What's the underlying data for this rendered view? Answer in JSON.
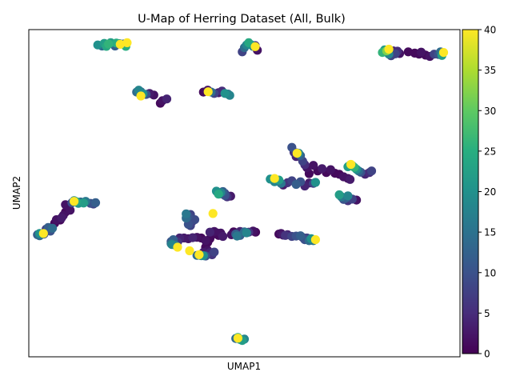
{
  "chart_data": {
    "type": "scatter",
    "title": "U-Map of Herring Dataset (All, Bulk)",
    "xlabel": "UMAP1",
    "ylabel": "UMAP2",
    "xlim": [
      0,
      100
    ],
    "ylim": [
      0,
      100
    ],
    "xticks_shown": false,
    "yticks_shown": false,
    "colorbar": {
      "label": "",
      "colormap": "viridis",
      "range": [
        0,
        40
      ],
      "ticks": [
        0,
        5,
        10,
        15,
        20,
        25,
        30,
        35,
        40
      ]
    },
    "point_style": {
      "marker": "circle",
      "size": "large"
    },
    "clusters": [
      {
        "id": "c1",
        "points": [
          [
            16,
            95.3,
            20
          ],
          [
            17,
            95,
            14
          ],
          [
            17.5,
            95.8,
            22
          ],
          [
            18,
            94.9,
            24
          ],
          [
            18.5,
            95.6,
            26
          ],
          [
            19,
            96,
            22
          ],
          [
            20,
            95,
            12
          ],
          [
            21,
            95.7,
            16
          ],
          [
            22,
            95.6,
            13
          ],
          [
            22.5,
            94.9,
            25
          ],
          [
            20.3,
            95.9,
            25
          ],
          [
            21.2,
            95.5,
            40
          ],
          [
            22.8,
            96,
            40
          ]
        ]
      },
      {
        "id": "c2",
        "points": [
          [
            49.5,
            93.2,
            8
          ],
          [
            50,
            94.5,
            14
          ],
          [
            50.5,
            95.3,
            18
          ],
          [
            51,
            96,
            24
          ],
          [
            51.5,
            95.4,
            20
          ],
          [
            52,
            94.9,
            16
          ],
          [
            52.5,
            95.1,
            6
          ],
          [
            53,
            93.7,
            2
          ],
          [
            52.5,
            94.8,
            40
          ]
        ]
      },
      {
        "id": "c3",
        "points": [
          [
            82,
            93,
            26
          ],
          [
            82.5,
            93.8,
            22
          ],
          [
            83,
            93.5,
            32
          ],
          [
            83.5,
            92.5,
            18
          ],
          [
            84,
            92,
            8
          ],
          [
            84.5,
            93.5,
            4
          ],
          [
            85,
            92.6,
            8
          ],
          [
            85.5,
            93.4,
            5
          ],
          [
            86,
            92.7,
            2
          ],
          [
            88,
            93.2,
            1
          ],
          [
            89.5,
            92.8,
            1
          ],
          [
            90.5,
            92.5,
            1
          ],
          [
            91,
            93.1,
            2
          ],
          [
            92,
            92.2,
            1
          ],
          [
            93,
            91.8,
            2
          ],
          [
            94,
            92.5,
            8
          ],
          [
            95,
            92.4,
            10
          ],
          [
            95.5,
            93.2,
            14
          ],
          [
            96,
            92.8,
            18
          ],
          [
            95.8,
            92.1,
            22
          ],
          [
            83.5,
            94,
            40
          ],
          [
            96.2,
            93,
            40
          ]
        ]
      },
      {
        "id": "c4",
        "points": [
          [
            25,
            80.9,
            14
          ],
          [
            25.5,
            81.5,
            18
          ],
          [
            26,
            81,
            12
          ],
          [
            26.5,
            80.4,
            20
          ],
          [
            27.2,
            80.2,
            10
          ],
          [
            28,
            80.5,
            3
          ],
          [
            29,
            80,
            2
          ],
          [
            30.5,
            77.5,
            1
          ],
          [
            31,
            78.3,
            2
          ],
          [
            32,
            78.8,
            4
          ],
          [
            26,
            79.7,
            40
          ]
        ]
      },
      {
        "id": "c5",
        "points": [
          [
            40.5,
            80.9,
            1
          ],
          [
            41.5,
            81.5,
            2
          ],
          [
            42.3,
            80.9,
            14
          ],
          [
            43,
            80.5,
            8
          ],
          [
            44,
            80.7,
            3
          ],
          [
            44.8,
            81.2,
            5
          ],
          [
            45.5,
            80.5,
            20
          ],
          [
            46.2,
            80.3,
            15
          ],
          [
            46.6,
            79.9,
            18
          ],
          [
            41.6,
            81,
            40
          ]
        ]
      },
      {
        "id": "c6",
        "points": [
          [
            61,
            64,
            10
          ],
          [
            61.5,
            62.5,
            6
          ],
          [
            62,
            61.2,
            4
          ],
          [
            62.2,
            62.3,
            10
          ],
          [
            62.6,
            62.2,
            18
          ],
          [
            63,
            61.5,
            12
          ],
          [
            63.5,
            59.8,
            8
          ],
          [
            64,
            58.7,
            5
          ],
          [
            64.5,
            57.8,
            2
          ],
          [
            65,
            56,
            1
          ],
          [
            66,
            58.5,
            2
          ],
          [
            67,
            56.8,
            1
          ],
          [
            68,
            57.5,
            3
          ],
          [
            69,
            56.3,
            1
          ],
          [
            70,
            57.2,
            2
          ],
          [
            71,
            56.1,
            1
          ],
          [
            72,
            55.8,
            1
          ],
          [
            73,
            55,
            2
          ],
          [
            74,
            54.5,
            1
          ],
          [
            74.5,
            54.2,
            3
          ],
          [
            62.2,
            62.2,
            40
          ]
        ]
      },
      {
        "id": "c7",
        "points": [
          [
            56,
            54.3,
            20
          ],
          [
            57,
            53.5,
            18
          ],
          [
            58,
            54,
            22
          ],
          [
            58.5,
            53,
            16
          ],
          [
            59,
            52.5,
            3
          ],
          [
            60,
            53.2,
            6
          ],
          [
            61,
            53.8,
            8
          ],
          [
            62,
            52.7,
            12
          ],
          [
            63,
            53.5,
            10
          ],
          [
            64,
            52.2,
            4
          ],
          [
            65,
            53.1,
            3
          ],
          [
            66,
            53,
            8
          ],
          [
            66.5,
            53.3,
            20
          ],
          [
            57,
            54.5,
            40
          ]
        ]
      },
      {
        "id": "c8",
        "points": [
          [
            74,
            58.1,
            22
          ],
          [
            74.5,
            58.6,
            24
          ],
          [
            75,
            58.4,
            18
          ],
          [
            75.5,
            57.9,
            26
          ],
          [
            76,
            57.3,
            20
          ],
          [
            76.5,
            56.8,
            14
          ],
          [
            77,
            56.4,
            10
          ],
          [
            78,
            55.8,
            4
          ],
          [
            79,
            56.3,
            5
          ],
          [
            79.5,
            56.8,
            8
          ],
          [
            74.7,
            58.8,
            40
          ]
        ]
      },
      {
        "id": "c9",
        "points": [
          [
            72,
            49.5,
            22
          ],
          [
            72.5,
            48.9,
            16
          ],
          [
            73,
            48.1,
            10
          ],
          [
            74,
            47.7,
            6
          ],
          [
            75,
            48.2,
            8
          ],
          [
            76,
            47.9,
            2
          ],
          [
            73.5,
            48.5,
            12
          ],
          [
            74,
            49.2,
            18
          ]
        ]
      },
      {
        "id": "c10",
        "points": [
          [
            43.5,
            50.6,
            20
          ],
          [
            44,
            49.7,
            24
          ],
          [
            44.5,
            50.2,
            18
          ],
          [
            45,
            50.5,
            12
          ],
          [
            45.5,
            49.3,
            10
          ],
          [
            46,
            48.9,
            6
          ],
          [
            46.8,
            49.1,
            3
          ],
          [
            43.8,
            50.2,
            4
          ],
          [
            45.5,
            49.9,
            8
          ],
          [
            44.5,
            49.8,
            4
          ]
        ]
      },
      {
        "id": "c11",
        "points": [
          [
            10,
            47.1,
            10
          ],
          [
            10.5,
            47.7,
            18
          ],
          [
            11,
            47.4,
            24
          ],
          [
            11.5,
            46.9,
            20
          ],
          [
            12,
            47.3,
            14
          ],
          [
            12.7,
            47,
            22
          ],
          [
            13.2,
            47.5,
            16
          ],
          [
            14.3,
            46.9,
            10
          ],
          [
            15,
            46.7,
            8
          ],
          [
            15.5,
            47.1,
            12
          ],
          [
            8.5,
            46.5,
            2
          ],
          [
            9,
            45.5,
            1
          ],
          [
            9.6,
            44.8,
            2
          ],
          [
            8.5,
            44.2,
            1
          ],
          [
            8,
            43.2,
            2
          ],
          [
            7.6,
            42.5,
            3
          ],
          [
            7.3,
            41.8,
            1
          ],
          [
            6.4,
            41.9,
            2
          ],
          [
            6,
            40.8,
            1
          ],
          [
            4,
            39,
            8
          ],
          [
            4.5,
            39.5,
            12
          ],
          [
            5.5,
            39.3,
            14
          ],
          [
            3.5,
            37.5,
            10
          ],
          [
            5,
            38.4,
            10
          ],
          [
            3,
            37.6,
            18
          ],
          [
            2,
            37.3,
            12
          ],
          [
            2.5,
            37.7,
            20
          ],
          [
            2.5,
            37,
            14
          ],
          [
            10.5,
            47.5,
            40
          ],
          [
            3.4,
            37.7,
            40
          ]
        ]
      },
      {
        "id": "c12",
        "points": [
          [
            36.5,
            43.7,
            16
          ],
          [
            37,
            42.8,
            10
          ],
          [
            37.5,
            43.5,
            8
          ],
          [
            38,
            41.5,
            6
          ],
          [
            38.5,
            41.9,
            9
          ],
          [
            36.5,
            42.4,
            14
          ],
          [
            37,
            40.5,
            10
          ],
          [
            37.5,
            40.1,
            8
          ]
        ]
      },
      {
        "id": "c13",
        "points": [
          [
            33.5,
            35.8,
            12
          ],
          [
            33,
            35.2,
            10
          ],
          [
            33,
            34.6,
            14
          ],
          [
            33.2,
            34.3,
            18
          ],
          [
            34,
            34.1,
            16
          ],
          [
            34.5,
            35.1,
            6
          ],
          [
            35,
            36,
            4
          ],
          [
            36,
            36.3,
            3
          ],
          [
            37,
            36.1,
            2
          ],
          [
            38,
            36.4,
            4
          ],
          [
            39,
            36.5,
            2
          ],
          [
            40,
            36.3,
            1
          ],
          [
            35,
            36.3,
            4
          ]
        ]
      },
      {
        "id": "c14",
        "points": [
          [
            41,
            35.5,
            2
          ],
          [
            41.5,
            35,
            1
          ],
          [
            42,
            36.1,
            1
          ],
          [
            42.5,
            37.3,
            1
          ],
          [
            42,
            38.1,
            4
          ],
          [
            43,
            38.3,
            2
          ],
          [
            43.5,
            37.9,
            1
          ],
          [
            44,
            37.1,
            1
          ],
          [
            45,
            36.8,
            3
          ],
          [
            44.5,
            37.8,
            2
          ]
        ]
      },
      {
        "id": "c15",
        "points": [
          [
            41,
            33.5,
            1
          ],
          [
            41.5,
            32.5,
            2
          ],
          [
            42,
            31.8,
            4
          ],
          [
            42.5,
            31.2,
            6
          ],
          [
            43,
            32,
            8
          ],
          [
            40.5,
            31.9,
            3
          ],
          [
            39,
            31,
            14
          ],
          [
            40,
            30.9,
            18
          ],
          [
            41,
            30.8,
            10
          ],
          [
            40.5,
            30.9,
            20
          ]
        ]
      },
      {
        "id": "c16",
        "points": [
          [
            47,
            37.3,
            2
          ],
          [
            47.5,
            38.2,
            1
          ],
          [
            48,
            37.5,
            12
          ],
          [
            48.5,
            37.9,
            2
          ],
          [
            49,
            38.3,
            4
          ],
          [
            50,
            38.2,
            14
          ],
          [
            50.5,
            37.9,
            18
          ],
          [
            51,
            38.1,
            6
          ],
          [
            52,
            38.4,
            2
          ],
          [
            52.6,
            38.1,
            1
          ],
          [
            49,
            37.1,
            12
          ],
          [
            48.3,
            36.9,
            16
          ]
        ]
      },
      {
        "id": "c17",
        "points": [
          [
            58,
            37.5,
            1
          ],
          [
            58.5,
            37.7,
            2
          ],
          [
            59,
            37.2,
            3
          ],
          [
            59.5,
            37.1,
            6
          ],
          [
            60,
            37.3,
            4
          ],
          [
            61,
            36.8,
            8
          ],
          [
            62,
            36.9,
            10
          ],
          [
            63,
            37,
            12
          ],
          [
            63.5,
            36.5,
            6
          ],
          [
            64,
            35.8,
            10
          ],
          [
            64.5,
            36.3,
            8
          ],
          [
            65,
            35.5,
            14
          ],
          [
            65.5,
            36.1,
            20
          ],
          [
            66,
            35.5,
            16
          ],
          [
            66.5,
            35.8,
            40
          ]
        ]
      },
      {
        "id": "c18",
        "points": [
          [
            48,
            5.6,
            14
          ],
          [
            48.5,
            5.9,
            24
          ],
          [
            49,
            5.3,
            20
          ],
          [
            49.5,
            5,
            22
          ],
          [
            50,
            5.4,
            18
          ],
          [
            48.5,
            5.7,
            40
          ]
        ]
      },
      {
        "id": "singles",
        "points": [
          [
            42.7,
            43.8,
            40
          ],
          [
            34.5,
            33.5,
            40
          ],
          [
            37.3,
            32.4,
            40
          ],
          [
            39.5,
            31.2,
            40
          ]
        ]
      }
    ]
  }
}
